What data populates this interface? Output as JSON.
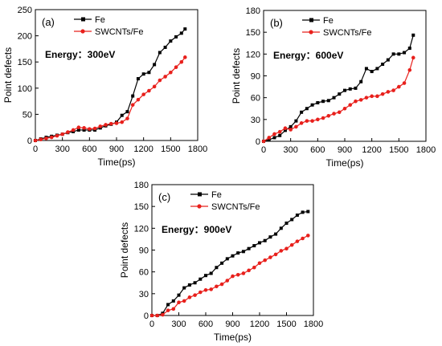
{
  "chart_data": [
    {
      "type": "line",
      "panel_label": "(a)",
      "annotation": "Energy：300eV",
      "xlabel": "Time(ps)",
      "ylabel": "Point defects",
      "xlim": [
        0,
        1800
      ],
      "ylim": [
        0,
        250
      ],
      "xticks": [
        0,
        300,
        600,
        900,
        1200,
        1500,
        1800
      ],
      "yticks": [
        0,
        50,
        100,
        150,
        200,
        250
      ],
      "legend": "top-right",
      "series": [
        {
          "name": "Fe",
          "color": "#000000",
          "marker": "square",
          "x": [
            0,
            60,
            120,
            180,
            240,
            300,
            360,
            420,
            480,
            540,
            600,
            660,
            720,
            780,
            840,
            900,
            960,
            1020,
            1080,
            1140,
            1200,
            1260,
            1320,
            1380,
            1440,
            1500,
            1560,
            1620,
            1660
          ],
          "y": [
            0,
            3,
            6,
            8,
            10,
            12,
            15,
            17,
            20,
            20,
            20,
            20,
            24,
            28,
            31,
            35,
            48,
            55,
            85,
            118,
            127,
            130,
            145,
            168,
            178,
            190,
            198,
            205,
            213
          ]
        },
        {
          "name": "SWCNTs/Fe",
          "color": "#e8201c",
          "marker": "circle",
          "x": [
            0,
            60,
            120,
            180,
            240,
            300,
            360,
            420,
            480,
            540,
            600,
            660,
            720,
            780,
            840,
            900,
            960,
            1020,
            1080,
            1140,
            1200,
            1260,
            1320,
            1380,
            1440,
            1500,
            1560,
            1620,
            1660
          ],
          "y": [
            0,
            2,
            4,
            6,
            9,
            12,
            16,
            20,
            25,
            24,
            22,
            23,
            27,
            30,
            32,
            33,
            35,
            42,
            68,
            78,
            88,
            95,
            103,
            115,
            122,
            130,
            140,
            150,
            159
          ]
        }
      ]
    },
    {
      "type": "line",
      "panel_label": "(b)",
      "annotation": "Energy：600eV",
      "xlabel": "Time(ps)",
      "ylabel": "Point defects",
      "xlim": [
        0,
        1800
      ],
      "ylim": [
        0,
        180
      ],
      "xticks": [
        0,
        300,
        600,
        900,
        1200,
        1500,
        1800
      ],
      "yticks": [
        0,
        30,
        60,
        90,
        120,
        150,
        180
      ],
      "legend": "top-right",
      "series": [
        {
          "name": "Fe",
          "color": "#000000",
          "marker": "square",
          "x": [
            0,
            60,
            120,
            180,
            240,
            300,
            360,
            420,
            480,
            540,
            600,
            660,
            720,
            780,
            840,
            900,
            960,
            1020,
            1080,
            1140,
            1200,
            1260,
            1320,
            1380,
            1440,
            1500,
            1560,
            1620,
            1660
          ],
          "y": [
            0,
            2,
            5,
            8,
            15,
            20,
            28,
            40,
            45,
            50,
            53,
            55,
            56,
            60,
            65,
            70,
            72,
            73,
            82,
            100,
            96,
            100,
            106,
            112,
            120,
            120,
            122,
            128,
            146
          ]
        },
        {
          "name": "SWCNTs/Fe",
          "color": "#e8201c",
          "marker": "circle",
          "x": [
            0,
            60,
            120,
            180,
            240,
            300,
            360,
            420,
            480,
            540,
            600,
            660,
            720,
            780,
            840,
            900,
            960,
            1020,
            1080,
            1140,
            1200,
            1260,
            1320,
            1380,
            1440,
            1500,
            1560,
            1620,
            1660
          ],
          "y": [
            0,
            5,
            10,
            13,
            18,
            16,
            20,
            25,
            28,
            28,
            30,
            32,
            35,
            38,
            40,
            45,
            50,
            55,
            57,
            60,
            62,
            62,
            65,
            68,
            70,
            75,
            80,
            98,
            115
          ]
        }
      ]
    },
    {
      "type": "line",
      "panel_label": "(c)",
      "annotation": "Energy：900eV",
      "xlabel": "Time(ps)",
      "ylabel": "Point defects",
      "xlim": [
        0,
        1800
      ],
      "ylim": [
        0,
        180
      ],
      "xticks": [
        0,
        300,
        600,
        900,
        1200,
        1500,
        1800
      ],
      "yticks": [
        0,
        30,
        60,
        90,
        120,
        150,
        180
      ],
      "legend": "top-right",
      "series": [
        {
          "name": "Fe",
          "color": "#000000",
          "marker": "square",
          "x": [
            0,
            60,
            120,
            180,
            240,
            300,
            360,
            420,
            480,
            540,
            600,
            660,
            720,
            780,
            840,
            900,
            960,
            1020,
            1080,
            1140,
            1200,
            1260,
            1320,
            1380,
            1440,
            1500,
            1560,
            1620,
            1680,
            1740
          ],
          "y": [
            0,
            0,
            3,
            15,
            20,
            28,
            38,
            42,
            45,
            50,
            55,
            58,
            66,
            72,
            78,
            82,
            86,
            88,
            92,
            96,
            100,
            103,
            108,
            112,
            120,
            127,
            132,
            138,
            142,
            143
          ]
        },
        {
          "name": "SWCNTs/Fe",
          "color": "#e8201c",
          "marker": "circle",
          "x": [
            0,
            60,
            120,
            180,
            240,
            300,
            360,
            420,
            480,
            540,
            600,
            660,
            720,
            780,
            840,
            900,
            960,
            1020,
            1080,
            1140,
            1200,
            1260,
            1320,
            1380,
            1440,
            1500,
            1560,
            1620,
            1680,
            1740
          ],
          "y": [
            0,
            0,
            1,
            7,
            9,
            18,
            20,
            25,
            28,
            32,
            35,
            36,
            40,
            43,
            48,
            54,
            56,
            58,
            62,
            66,
            72,
            76,
            80,
            84,
            89,
            92,
            97,
            102,
            106,
            110
          ]
        }
      ]
    }
  ]
}
